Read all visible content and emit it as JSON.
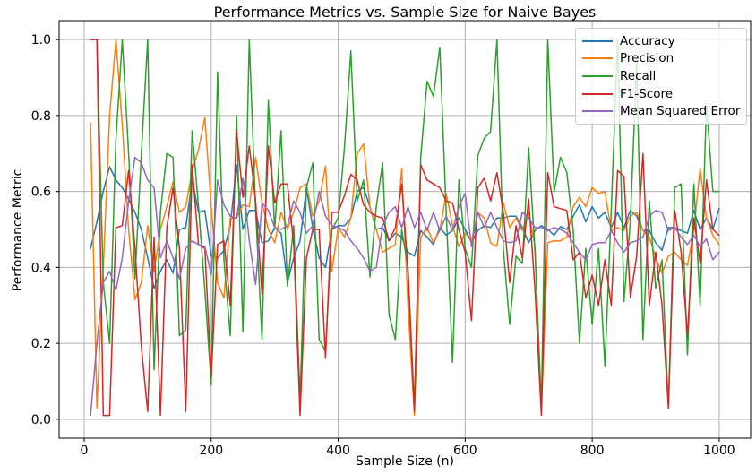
{
  "chart_data": {
    "type": "line",
    "title": "Performance Metrics vs. Sample Size for Naive Bayes",
    "xlabel": "Sample Size (n)",
    "ylabel": "Performance Metric",
    "xticks": [
      0,
      200,
      400,
      600,
      800,
      1000
    ],
    "ytick_labels": [
      "0.0",
      "0.2",
      "0.4",
      "0.6",
      "0.8",
      "1.0"
    ],
    "yticks": [
      0.0,
      0.2,
      0.4,
      0.6,
      0.8,
      1.0
    ],
    "xlim": [
      -39.5,
      1049.5
    ],
    "ylim": [
      -0.05,
      1.05
    ],
    "grid": true,
    "grid_color": "#b0b0b0",
    "legend_position": "upper right",
    "x_start": 10,
    "x_step": 10,
    "x_end": 1000,
    "series": [
      {
        "name": "Accuracy",
        "color": "#1f77b4",
        "values": [
          0.45,
          0.52,
          0.6,
          0.665,
          0.63,
          0.61,
          0.58,
          0.545,
          0.5,
          0.425,
          0.345,
          0.39,
          0.42,
          0.385,
          0.5,
          0.505,
          0.63,
          0.545,
          0.55,
          0.43,
          0.425,
          0.445,
          0.51,
          0.67,
          0.5,
          0.55,
          0.55,
          0.465,
          0.47,
          0.505,
          0.49,
          0.36,
          0.425,
          0.47,
          0.61,
          0.505,
          0.425,
          0.4,
          0.5,
          0.51,
          0.51,
          0.53,
          0.6,
          0.61,
          0.56,
          0.5,
          0.505,
          0.47,
          0.49,
          0.48,
          0.44,
          0.43,
          0.497,
          0.48,
          0.46,
          0.505,
          0.485,
          0.497,
          0.53,
          0.5,
          0.465,
          0.497,
          0.51,
          0.505,
          0.53,
          0.53,
          0.535,
          0.535,
          0.505,
          0.465,
          0.497,
          0.51,
          0.5,
          0.485,
          0.507,
          0.5,
          0.535,
          0.565,
          0.52,
          0.56,
          0.53,
          0.545,
          0.505,
          0.545,
          0.505,
          0.55,
          0.535,
          0.497,
          0.497,
          0.465,
          0.445,
          0.505,
          0.505,
          0.497,
          0.49,
          0.55,
          0.5,
          0.53,
          0.5,
          0.555
        ]
      },
      {
        "name": "Precision",
        "color": "#ff7f0e",
        "values": [
          0.78,
          0.03,
          0.4,
          0.8,
          1.0,
          0.775,
          0.5,
          0.315,
          0.36,
          0.51,
          0.39,
          0.5,
          0.56,
          0.625,
          0.545,
          0.56,
          0.655,
          0.71,
          0.795,
          0.56,
          0.36,
          0.32,
          0.53,
          0.53,
          0.565,
          0.56,
          0.69,
          0.57,
          0.5,
          0.465,
          0.545,
          0.5,
          0.545,
          0.61,
          0.62,
          0.535,
          0.575,
          0.667,
          0.39,
          0.505,
          0.48,
          0.53,
          0.7,
          0.725,
          0.56,
          0.5,
          0.44,
          0.45,
          0.46,
          0.66,
          0.3,
          0.01,
          0.48,
          0.505,
          0.465,
          0.497,
          0.595,
          0.51,
          0.455,
          0.49,
          0.47,
          0.545,
          0.53,
          0.465,
          0.455,
          0.57,
          0.505,
          0.53,
          0.497,
          0.545,
          0.455,
          0.02,
          0.465,
          0.47,
          0.47,
          0.48,
          0.56,
          0.585,
          0.56,
          0.61,
          0.595,
          0.6,
          0.497,
          0.505,
          0.497,
          0.535,
          0.545,
          0.497,
          0.48,
          0.425,
          0.385,
          0.43,
          0.44,
          0.42,
          0.405,
          0.5,
          0.66,
          0.53,
          0.485,
          0.46
        ]
      },
      {
        "name": "Recall",
        "color": "#2ca02c",
        "values": [
          1.0,
          1.0,
          0.36,
          0.2,
          0.735,
          1.0,
          0.7,
          0.37,
          0.7,
          1.0,
          0.13,
          0.545,
          0.7,
          0.69,
          0.22,
          0.235,
          0.76,
          0.56,
          0.34,
          0.09,
          0.915,
          0.42,
          0.22,
          0.8,
          0.23,
          1.0,
          0.55,
          0.21,
          0.84,
          0.5,
          0.76,
          0.35,
          0.51,
          0.05,
          0.61,
          0.675,
          0.21,
          0.18,
          0.5,
          0.53,
          0.72,
          0.97,
          0.575,
          0.63,
          0.375,
          0.56,
          0.675,
          0.275,
          0.21,
          0.5,
          0.4,
          0.03,
          0.69,
          0.89,
          0.85,
          0.98,
          0.55,
          0.15,
          0.63,
          0.45,
          0.4,
          0.695,
          0.74,
          0.758,
          1.0,
          0.45,
          0.25,
          0.43,
          0.41,
          0.715,
          0.44,
          0.03,
          1.0,
          0.6,
          0.69,
          0.65,
          0.5,
          0.2,
          0.45,
          0.25,
          0.45,
          0.14,
          0.55,
          1.0,
          0.31,
          0.52,
          0.94,
          0.21,
          0.575,
          0.345,
          0.42,
          0.03,
          0.61,
          0.62,
          0.17,
          0.62,
          0.3,
          0.83,
          0.6,
          0.6
        ]
      },
      {
        "name": "F1-Score",
        "color": "#d62728",
        "values": [
          1.0,
          1.0,
          0.01,
          0.01,
          0.505,
          0.51,
          0.655,
          0.45,
          0.19,
          0.02,
          0.48,
          0.01,
          0.505,
          0.61,
          0.45,
          0.02,
          0.67,
          0.46,
          0.45,
          0.11,
          0.46,
          0.47,
          0.3,
          0.76,
          0.585,
          0.72,
          0.575,
          0.33,
          0.72,
          0.57,
          0.62,
          0.62,
          0.46,
          0.01,
          0.425,
          0.5,
          0.5,
          0.16,
          0.545,
          0.545,
          0.59,
          0.645,
          0.63,
          0.565,
          0.545,
          0.535,
          0.53,
          0.47,
          0.505,
          0.62,
          0.39,
          0.02,
          0.67,
          0.63,
          0.62,
          0.61,
          0.575,
          0.57,
          0.5,
          0.44,
          0.26,
          0.61,
          0.635,
          0.575,
          0.65,
          0.545,
          0.36,
          0.51,
          0.425,
          0.58,
          0.34,
          0.01,
          0.65,
          0.56,
          0.555,
          0.55,
          0.42,
          0.44,
          0.32,
          0.38,
          0.3,
          0.42,
          0.3,
          0.655,
          0.64,
          0.32,
          0.43,
          0.7,
          0.3,
          0.44,
          0.3,
          0.03,
          0.55,
          0.44,
          0.22,
          0.53,
          0.41,
          0.63,
          0.5,
          0.485
        ]
      },
      {
        "name": "Mean Squared Error",
        "color": "#9467bd",
        "values": [
          0.01,
          0.2,
          0.36,
          0.39,
          0.34,
          0.425,
          0.575,
          0.69,
          0.675,
          0.63,
          0.61,
          0.425,
          0.47,
          0.425,
          0.37,
          0.45,
          0.47,
          0.46,
          0.455,
          0.38,
          0.63,
          0.565,
          0.535,
          0.53,
          0.635,
          0.47,
          0.355,
          0.57,
          0.55,
          0.505,
          0.5,
          0.51,
          0.575,
          0.545,
          0.49,
          0.51,
          0.6,
          0.535,
          0.51,
          0.505,
          0.497,
          0.47,
          0.45,
          0.425,
          0.39,
          0.4,
          0.51,
          0.545,
          0.56,
          0.505,
          0.56,
          0.505,
          0.545,
          0.497,
          0.545,
          0.497,
          0.535,
          0.497,
          0.56,
          0.595,
          0.455,
          0.545,
          0.505,
          0.545,
          0.505,
          0.47,
          0.465,
          0.47,
          0.545,
          0.53,
          0.505,
          0.505,
          0.497,
          0.505,
          0.5,
          0.49,
          0.465,
          0.44,
          0.42,
          0.46,
          0.465,
          0.465,
          0.497,
          0.465,
          0.44,
          0.465,
          0.47,
          0.48,
          0.535,
          0.55,
          0.545,
          0.497,
          0.505,
          0.48,
          0.46,
          0.485,
          0.455,
          0.475,
          0.42,
          0.44
        ]
      }
    ]
  }
}
